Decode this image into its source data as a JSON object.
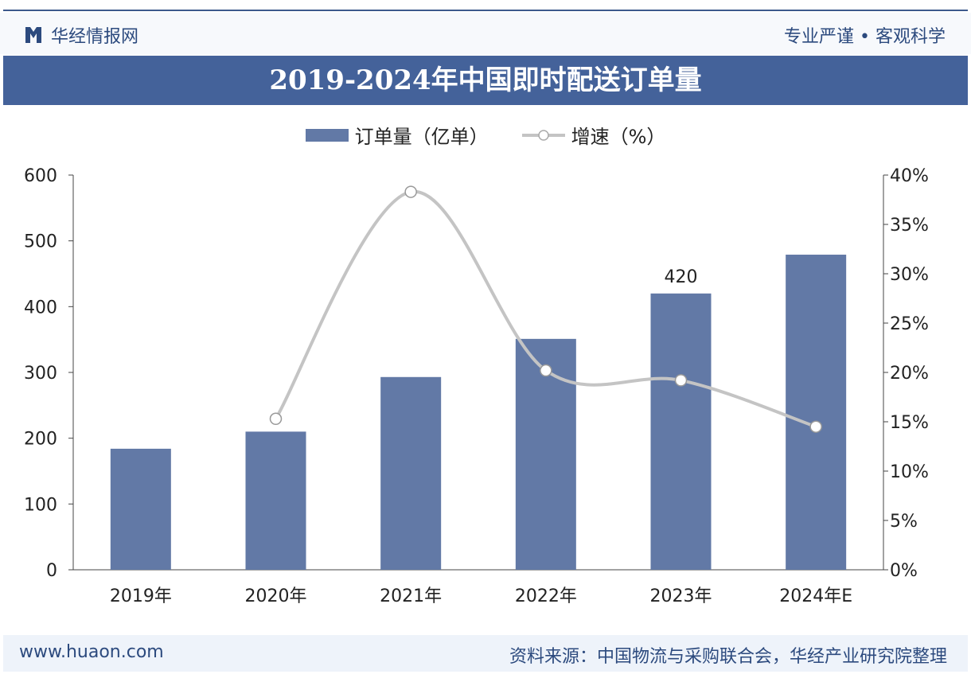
{
  "header": {
    "brand": "华经情报网",
    "slogan": "专业严谨 • 客观科学"
  },
  "footer": {
    "site": "www.huaon.com",
    "source": "资料来源：中国物流与采购联合会，华经产业研究院整理"
  },
  "colors": {
    "bar": "#6279a6",
    "line": "#c4c4c4",
    "title_bg": "#44629a"
  },
  "chart_data": {
    "type": "bar",
    "title": "2019-2024年中国即时配送订单量",
    "categories": [
      "2019年",
      "2020年",
      "2021年",
      "2022年",
      "2023年",
      "2024年E"
    ],
    "series": [
      {
        "name": "订单量（亿单）",
        "type": "bar",
        "axis": "left",
        "values": [
          184,
          210,
          293,
          351,
          420,
          479
        ]
      },
      {
        "name": "增速（%）",
        "type": "line",
        "axis": "right",
        "values": [
          null,
          15.3,
          38.3,
          20.2,
          19.2,
          14.5
        ]
      }
    ],
    "data_labels": [
      {
        "category": "2023年",
        "text": "420"
      }
    ],
    "left_axis": {
      "ylim": [
        0,
        600
      ],
      "ticks": [
        "0",
        "100",
        "200",
        "300",
        "400",
        "500",
        "600"
      ]
    },
    "right_axis": {
      "ylim": [
        0,
        40
      ],
      "ticks": [
        "0%",
        "5%",
        "10%",
        "15%",
        "20%",
        "25%",
        "30%",
        "35%",
        "40%"
      ]
    },
    "legend": "top-center"
  }
}
